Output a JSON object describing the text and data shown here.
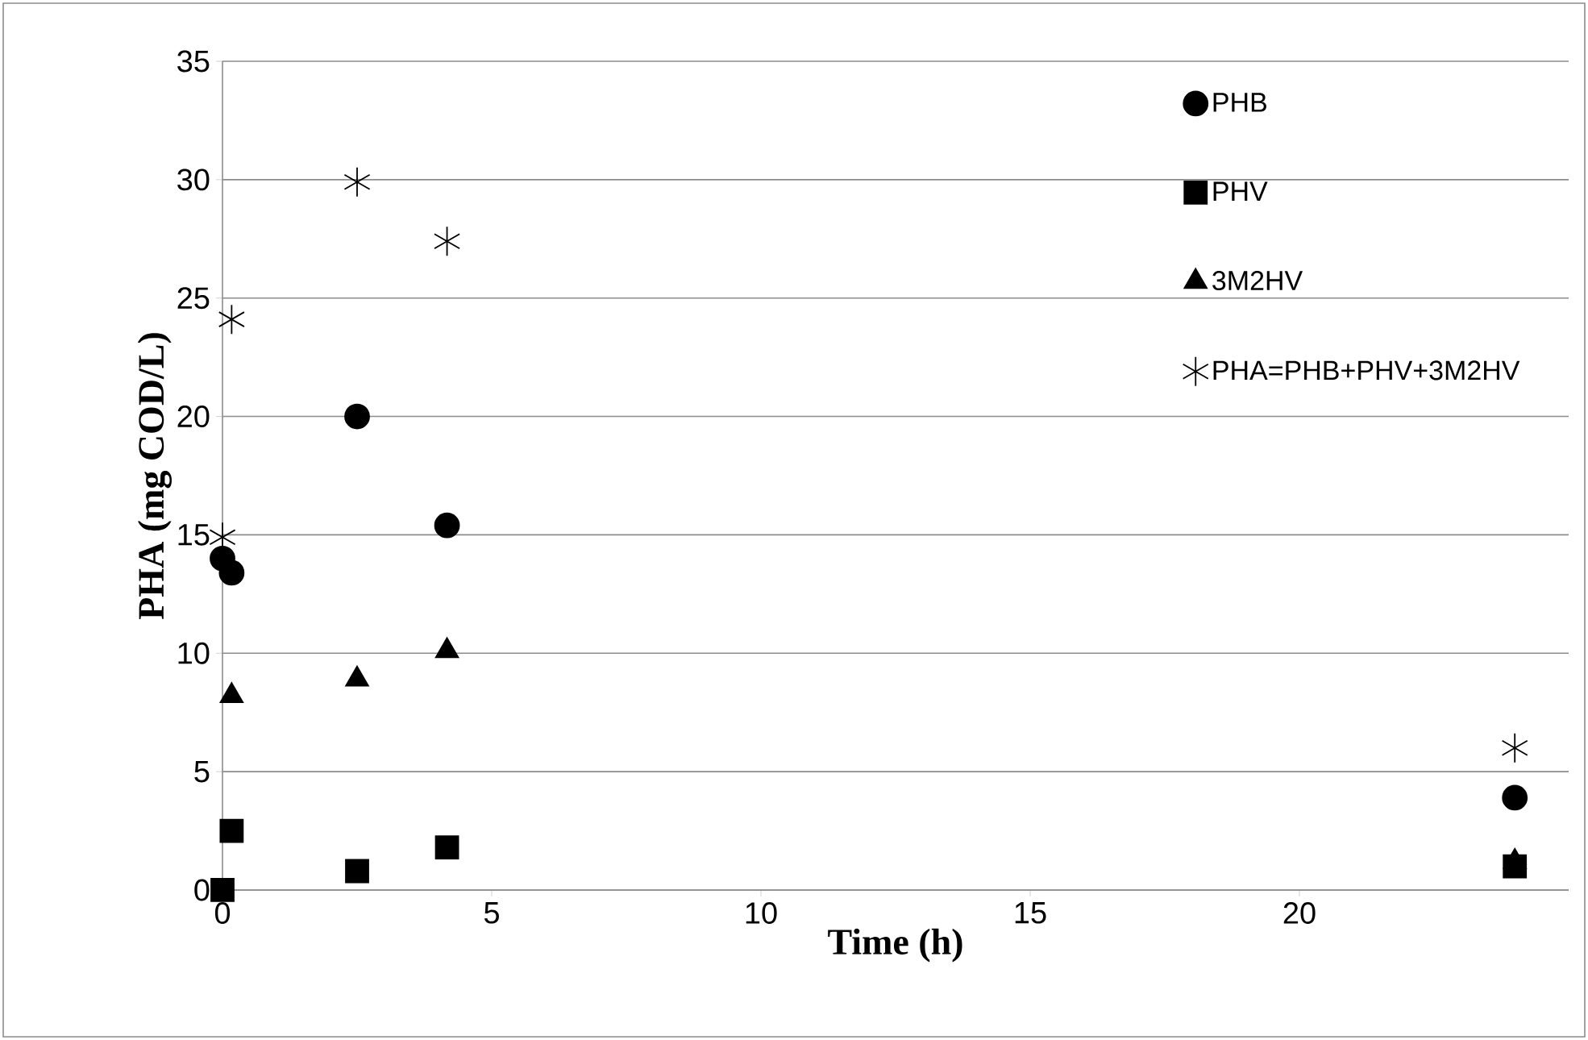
{
  "chart_data": {
    "type": "scatter",
    "xlabel": "Time (h)",
    "ylabel": "PHA (mg COD/L)",
    "xlim": [
      0,
      25
    ],
    "xticks": [
      0,
      5,
      10,
      15,
      20
    ],
    "ylim": [
      0,
      35
    ],
    "yticks": [
      0,
      5,
      10,
      15,
      20,
      25,
      30,
      35
    ],
    "grid": "y",
    "legend": "top right",
    "series": [
      {
        "name": "PHB",
        "color": "#000000",
        "marker": "circle",
        "x": [
          0,
          0.17,
          2.5,
          4.17,
          24
        ],
        "values": [
          14.0,
          13.4,
          20.0,
          15.4,
          3.9
        ]
      },
      {
        "name": "PHV",
        "color": "#000000",
        "marker": "square",
        "x": [
          0,
          0.17,
          2.5,
          4.17,
          24
        ],
        "values": [
          0,
          2.5,
          0.8,
          1.8,
          1.0
        ]
      },
      {
        "name": "3M2HV",
        "color": "#000000",
        "marker": "triangle",
        "x": [
          0.17,
          2.5,
          4.17,
          24
        ],
        "values": [
          8.2,
          8.9,
          10.1,
          1.2
        ]
      },
      {
        "name": "PHA=PHB+PHV+3M2HV",
        "color": "#000000",
        "marker": "cross",
        "x": [
          0,
          0.17,
          2.5,
          4.17,
          24
        ],
        "values": [
          14.9,
          24.1,
          29.9,
          27.4,
          6.0
        ]
      }
    ]
  }
}
